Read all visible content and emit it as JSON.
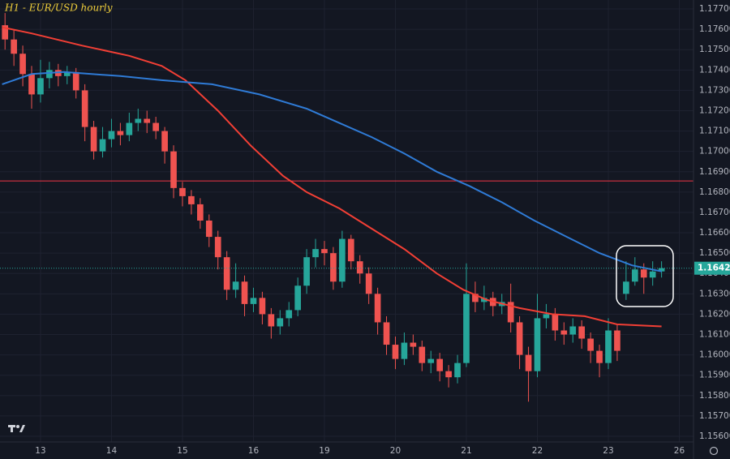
{
  "chart_data": {
    "type": "candlestick",
    "title": "H1 - EUR/USD hourly",
    "x": [
      -12,
      -9,
      -6,
      -3,
      0,
      3,
      6,
      9,
      12,
      15,
      18,
      21,
      24,
      27,
      30,
      33,
      36,
      39,
      42,
      45,
      48,
      51,
      54,
      57,
      60,
      63,
      66,
      69,
      72,
      75,
      78,
      81,
      84,
      87,
      90,
      93,
      96,
      99,
      102,
      105,
      108,
      111,
      114,
      117,
      120,
      123,
      126,
      129,
      132,
      135,
      138,
      141,
      144,
      147,
      150,
      153,
      156,
      159,
      162,
      165,
      168,
      171,
      174,
      177,
      180,
      183,
      186,
      189,
      192,
      195,
      198,
      201,
      204,
      207,
      210
    ],
    "open": [
      1.1762,
      1.1755,
      1.1748,
      1.1738,
      1.1728,
      1.1736,
      1.174,
      1.1737,
      1.1739,
      1.173,
      1.1712,
      1.17,
      1.1706,
      1.171,
      1.1708,
      1.1714,
      1.1716,
      1.1714,
      1.171,
      1.17,
      1.1682,
      1.1678,
      1.1674,
      1.1666,
      1.1658,
      1.1648,
      1.1632,
      1.1636,
      1.1625,
      1.1628,
      1.162,
      1.1614,
      1.1618,
      1.1622,
      1.1634,
      1.1648,
      1.1652,
      1.165,
      1.1636,
      1.1657,
      1.1646,
      1.164,
      1.163,
      1.1616,
      1.1605,
      1.1598,
      1.1606,
      1.1604,
      1.1596,
      1.1598,
      1.1592,
      1.1589,
      1.1596,
      1.163,
      1.1626,
      1.1628,
      1.1624,
      1.1626,
      1.1616,
      1.16,
      1.1592,
      1.1618,
      1.162,
      1.1612,
      1.161,
      1.1614,
      1.1608,
      1.1602,
      1.1596,
      1.1612,
      1.163,
      1.1636,
      1.1642,
      1.1638,
      1.1641
    ],
    "high": [
      1.1768,
      1.176,
      1.1752,
      1.1742,
      1.1745,
      1.1744,
      1.1743,
      1.1742,
      1.1741,
      1.1733,
      1.1715,
      1.1712,
      1.1716,
      1.1714,
      1.1719,
      1.1721,
      1.172,
      1.1717,
      1.1712,
      1.1703,
      1.1685,
      1.1681,
      1.1677,
      1.1669,
      1.1661,
      1.1651,
      1.1645,
      1.1639,
      1.1633,
      1.1631,
      1.1623,
      1.1622,
      1.1626,
      1.1638,
      1.1652,
      1.1657,
      1.1656,
      1.1653,
      1.1661,
      1.1659,
      1.1649,
      1.1643,
      1.1633,
      1.1619,
      1.1609,
      1.1611,
      1.161,
      1.1607,
      1.1602,
      1.1601,
      1.1595,
      1.16,
      1.1645,
      1.1636,
      1.1634,
      1.1631,
      1.163,
      1.1635,
      1.1619,
      1.1604,
      1.163,
      1.1625,
      1.1623,
      1.1616,
      1.1618,
      1.1617,
      1.1611,
      1.1605,
      1.1618,
      1.1615,
      1.1646,
      1.1648,
      1.1645,
      1.1646,
      1.1646
    ],
    "low": [
      1.175,
      1.1742,
      1.1732,
      1.1721,
      1.1724,
      1.1731,
      1.1732,
      1.1733,
      1.1726,
      1.1705,
      1.1696,
      1.1697,
      1.1702,
      1.1703,
      1.1705,
      1.171,
      1.1709,
      1.1706,
      1.1694,
      1.1677,
      1.1673,
      1.1669,
      1.1662,
      1.1653,
      1.1642,
      1.1627,
      1.1628,
      1.1619,
      1.1621,
      1.1615,
      1.1608,
      1.161,
      1.1614,
      1.1619,
      1.163,
      1.1643,
      1.1644,
      1.1632,
      1.1633,
      1.1642,
      1.1635,
      1.1625,
      1.161,
      1.16,
      1.1593,
      1.1595,
      1.16,
      1.1592,
      1.1591,
      1.1587,
      1.1584,
      1.1586,
      1.1594,
      1.1621,
      1.1622,
      1.1619,
      1.162,
      1.1611,
      1.1593,
      1.1577,
      1.1589,
      1.1613,
      1.1607,
      1.1605,
      1.1606,
      1.1603,
      1.1596,
      1.1589,
      1.1593,
      1.1597,
      1.1627,
      1.1634,
      1.163,
      1.1634,
      1.1638
    ],
    "close": [
      1.1755,
      1.1748,
      1.1738,
      1.1728,
      1.1736,
      1.174,
      1.1737,
      1.1739,
      1.173,
      1.1712,
      1.17,
      1.1706,
      1.171,
      1.1708,
      1.1714,
      1.1716,
      1.1714,
      1.171,
      1.17,
      1.1682,
      1.1678,
      1.1674,
      1.1666,
      1.1658,
      1.1648,
      1.1632,
      1.1636,
      1.1625,
      1.1628,
      1.162,
      1.1614,
      1.1618,
      1.1622,
      1.1634,
      1.1648,
      1.1652,
      1.165,
      1.1636,
      1.1657,
      1.1646,
      1.164,
      1.163,
      1.1616,
      1.1605,
      1.1598,
      1.1606,
      1.1604,
      1.1596,
      1.1598,
      1.1592,
      1.1589,
      1.1596,
      1.163,
      1.1626,
      1.1628,
      1.1624,
      1.1626,
      1.1616,
      1.16,
      1.1592,
      1.1618,
      1.162,
      1.1612,
      1.161,
      1.1614,
      1.1608,
      1.1602,
      1.1596,
      1.1612,
      1.1602,
      1.1636,
      1.1642,
      1.1638,
      1.1641,
      1.16426
    ],
    "up_color": "#26a69a",
    "down_color": "#ef5350",
    "lines": [
      {
        "color": "#f23f35",
        "x": [
          -13,
          -3,
          14,
          30,
          41,
          49,
          60,
          71,
          82,
          90,
          101,
          112,
          123,
          134,
          143,
          151,
          162,
          173,
          184,
          195,
          210
        ],
        "values": [
          1.1761,
          1.1758,
          1.1752,
          1.1747,
          1.1742,
          1.1735,
          1.172,
          1.1703,
          1.1688,
          1.168,
          1.1672,
          1.1662,
          1.1652,
          1.164,
          1.1632,
          1.1627,
          1.1623,
          1.162,
          1.1619,
          1.1615,
          1.1614
        ]
      },
      {
        "color": "#2f7bd6",
        "x": [
          -13,
          -3,
          8,
          27,
          41,
          58,
          74,
          90,
          101,
          112,
          123,
          134,
          145,
          156,
          167,
          178,
          189,
          200,
          210
        ],
        "values": [
          1.1733,
          1.1738,
          1.1739,
          1.1737,
          1.1735,
          1.1733,
          1.1728,
          1.1721,
          1.1714,
          1.1707,
          1.1699,
          1.169,
          1.1683,
          1.1675,
          1.1666,
          1.1658,
          1.165,
          1.1644,
          1.1641
        ]
      }
    ],
    "hlines": [
      {
        "value": 1.16855,
        "color": "#f23645"
      }
    ],
    "last_price": 1.16426,
    "xlim": [
      -13.7,
      220.8
    ],
    "ylim": [
      1.15572,
      1.17744
    ],
    "xticks": [
      {
        "value": 0,
        "label": "13"
      },
      {
        "value": 24,
        "label": "14"
      },
      {
        "value": 48,
        "label": "15"
      },
      {
        "value": 72,
        "label": "16"
      },
      {
        "value": 96,
        "label": "19"
      },
      {
        "value": 120,
        "label": "20"
      },
      {
        "value": 144,
        "label": "21"
      },
      {
        "value": 168,
        "label": "22"
      },
      {
        "value": 192,
        "label": "23"
      },
      {
        "value": 216,
        "label": "26"
      }
    ],
    "yticks": [
      {
        "value": 1.156,
        "label": "1.15600"
      },
      {
        "value": 1.157,
        "label": "1.15700"
      },
      {
        "value": 1.158,
        "label": "1.15800"
      },
      {
        "value": 1.159,
        "label": "1.15900"
      },
      {
        "value": 1.16,
        "label": "1.16000"
      },
      {
        "value": 1.161,
        "label": "1.16100"
      },
      {
        "value": 1.162,
        "label": "1.16200"
      },
      {
        "value": 1.163,
        "label": "1.16300"
      },
      {
        "value": 1.164,
        "label": "1.16400"
      },
      {
        "value": 1.165,
        "label": "1.16500"
      },
      {
        "value": 1.166,
        "label": "1.16600"
      },
      {
        "value": 1.167,
        "label": "1.16700"
      },
      {
        "value": 1.168,
        "label": "1.16800"
      },
      {
        "value": 1.169,
        "label": "1.16900"
      },
      {
        "value": 1.17,
        "label": "1.17000"
      },
      {
        "value": 1.171,
        "label": "1.17100"
      },
      {
        "value": 1.172,
        "label": "1.17200"
      },
      {
        "value": 1.173,
        "label": "1.17300"
      },
      {
        "value": 1.174,
        "label": "1.17400"
      },
      {
        "value": 1.175,
        "label": "1.17500"
      },
      {
        "value": 1.176,
        "label": "1.17600"
      },
      {
        "value": 1.177,
        "label": "1.17700"
      }
    ],
    "grid": true
  }
}
